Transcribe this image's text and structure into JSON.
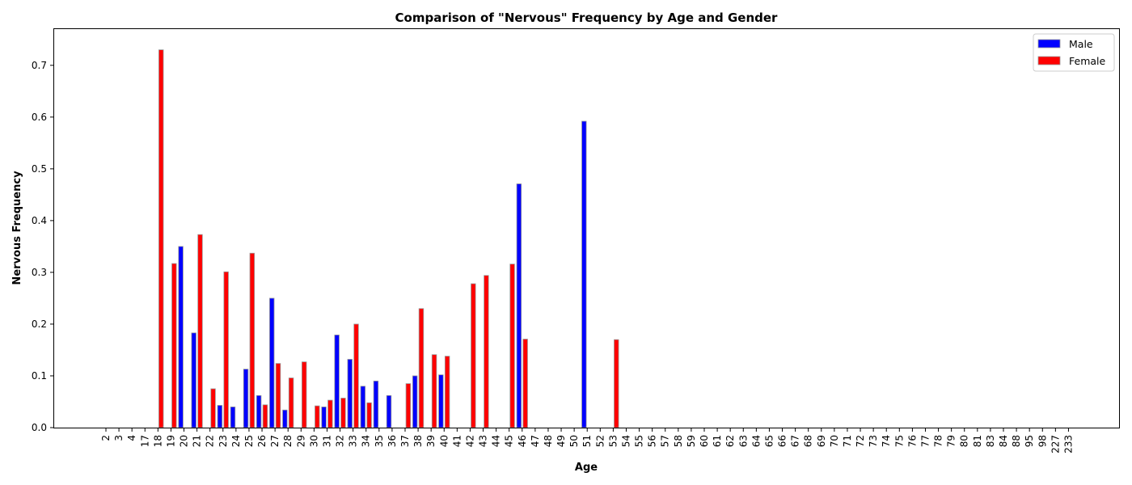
{
  "chart_data": {
    "type": "bar",
    "title": "Comparison of \"Nervous\" Frequency by Age and Gender",
    "xlabel": "Age",
    "ylabel": "Nervous Frequency",
    "ylim": [
      0,
      0.77
    ],
    "yticks": [
      0.0,
      0.1,
      0.2,
      0.3,
      0.4,
      0.5,
      0.6,
      0.7
    ],
    "ytick_labels": [
      "0.0",
      "0.1",
      "0.2",
      "0.3",
      "0.4",
      "0.5",
      "0.6",
      "0.7"
    ],
    "grid": false,
    "legend_position": "top-right",
    "categories": [
      "2",
      "3",
      "4",
      "17",
      "18",
      "19",
      "20",
      "21",
      "22",
      "23",
      "24",
      "25",
      "26",
      "27",
      "28",
      "29",
      "30",
      "31",
      "32",
      "33",
      "34",
      "35",
      "36",
      "37",
      "38",
      "39",
      "40",
      "41",
      "42",
      "43",
      "44",
      "45",
      "46",
      "47",
      "48",
      "49",
      "50",
      "51",
      "52",
      "53",
      "54",
      "55",
      "56",
      "57",
      "58",
      "59",
      "60",
      "61",
      "62",
      "63",
      "64",
      "65",
      "66",
      "67",
      "68",
      "69",
      "70",
      "71",
      "72",
      "73",
      "74",
      "75",
      "76",
      "77",
      "78",
      "79",
      "80",
      "81",
      "83",
      "84",
      "88",
      "95",
      "98",
      "227",
      "233"
    ],
    "series": [
      {
        "name": "Male",
        "color": "#0000ff",
        "values": [
          0,
          0,
          0,
          0,
          0,
          0,
          0.35,
          0.183,
          0,
          0.043,
          0.04,
          0.113,
          0.062,
          0.25,
          0.034,
          0,
          0,
          0.04,
          0.179,
          0.132,
          0.08,
          0.09,
          0.062,
          0,
          0.1,
          0,
          0.102,
          0,
          0,
          0,
          0,
          0,
          0.471,
          0,
          0,
          0,
          0,
          0.592,
          0,
          0,
          0,
          0,
          0,
          0,
          0,
          0,
          0,
          0,
          0,
          0,
          0,
          0,
          0,
          0,
          0,
          0,
          0,
          0,
          0,
          0,
          0,
          0,
          0,
          0,
          0,
          0,
          0,
          0,
          0,
          0,
          0,
          0,
          0,
          0,
          0
        ]
      },
      {
        "name": "Female",
        "color": "#ff0000",
        "values": [
          0,
          0,
          0,
          0,
          0.73,
          0.317,
          0,
          0.373,
          0.075,
          0.301,
          0,
          0.337,
          0.044,
          0.124,
          0.096,
          0.127,
          0.042,
          0.053,
          0.057,
          0.2,
          0.048,
          0,
          0,
          0.085,
          0.23,
          0.141,
          0.138,
          0,
          0.278,
          0.294,
          0,
          0.316,
          0.171,
          0,
          0,
          0,
          0,
          0,
          0,
          0.17,
          0,
          0,
          0,
          0,
          0,
          0,
          0,
          0,
          0,
          0,
          0,
          0,
          0,
          0,
          0,
          0,
          0,
          0,
          0,
          0,
          0,
          0,
          0,
          0,
          0,
          0,
          0,
          0,
          0,
          0,
          0,
          0,
          0,
          0,
          0
        ]
      }
    ]
  }
}
